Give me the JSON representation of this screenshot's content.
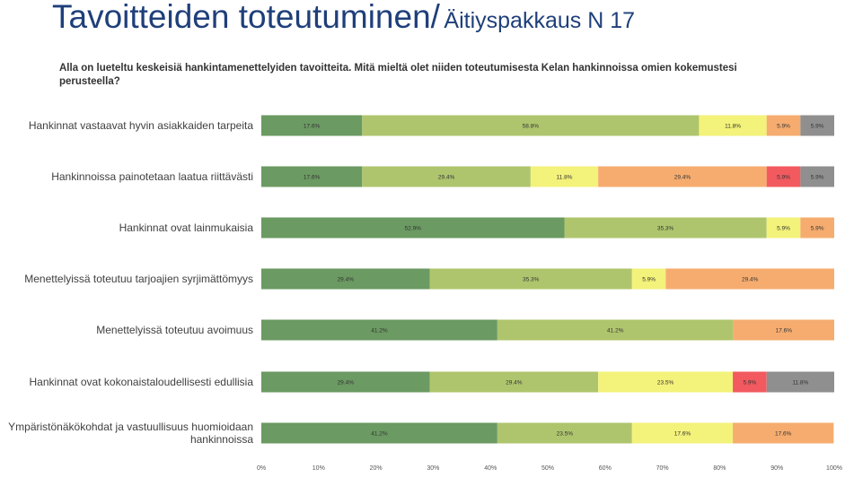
{
  "title": {
    "main": "Tavoitteiden toteutuminen/",
    "sub": "Äitiyspakkaus N 17"
  },
  "question": "Alla on lueteltu keskeisiä hankintamenettelyiden tavoitteita. Mitä mieltä olet niiden toteutumisesta Kelan hankinnoissa omien kokemustesi perusteella?",
  "colors": [
    "#6b9a62",
    "#afc56d",
    "#f3f27a",
    "#f6ac6f",
    "#f25a5f",
    "#8f8f8f"
  ],
  "chart_data": {
    "type": "bar",
    "orientation": "horizontal",
    "stacked": true,
    "categories": [
      [
        "Hankinnat vastaavat hyvin asiakkaiden tarpeita"
      ],
      [
        "Hankinnoissa painotetaan laatua riittävästi"
      ],
      [
        "Hankinnat ovat lainmukaisia"
      ],
      [
        "Menettelyissä toteutuu tarjoajien syrjimättömyys"
      ],
      [
        "Menettelyissä toteutuu avoimuus"
      ],
      [
        "Hankinnat ovat kokonaistaloudellisesti edullisia"
      ],
      [
        "Ympäristönäkökohdat ja vastuullisuus huomioidaan",
        "hankinnoissa"
      ]
    ],
    "series": [
      {
        "values": [
          17.6,
          17.6,
          52.9,
          29.4,
          41.2,
          29.4,
          41.2
        ]
      },
      {
        "values": [
          58.8,
          29.4,
          35.3,
          35.3,
          41.2,
          29.4,
          23.5
        ]
      },
      {
        "values": [
          11.8,
          11.8,
          5.9,
          5.9,
          0,
          23.5,
          17.6
        ]
      },
      {
        "values": [
          5.9,
          29.4,
          5.9,
          29.4,
          17.6,
          0,
          17.6
        ]
      },
      {
        "values": [
          0,
          5.9,
          0,
          0,
          0,
          5.9,
          0
        ]
      },
      {
        "values": [
          5.9,
          5.9,
          0,
          0,
          0,
          11.8,
          0
        ]
      }
    ],
    "data_labels": [
      [
        "17.6%",
        "58.8%",
        "11.8%",
        "5.9%",
        "",
        "5.9%"
      ],
      [
        "17.6%",
        "29.4%",
        "11.8%",
        "29.4%",
        "5.9%",
        "5.9%"
      ],
      [
        "52.9%",
        "35.3%",
        "5.9%",
        "5.9%",
        "",
        ""
      ],
      [
        "29.4%",
        "35.3%",
        "5.9%",
        "29.4%",
        "",
        ""
      ],
      [
        "41.2%",
        "41.2%",
        "",
        "17.6%",
        "",
        ""
      ],
      [
        "29.4%",
        "29.4%",
        "23.5%",
        "",
        "5.9%",
        "11.8%"
      ],
      [
        "41.2%",
        "23.5%",
        "17.6%",
        "17.6%",
        "",
        ""
      ]
    ],
    "xlim": [
      0,
      100
    ],
    "xticks": [
      "0%",
      "10%",
      "20%",
      "30%",
      "40%",
      "50%",
      "60%",
      "70%",
      "80%",
      "90%",
      "100%"
    ],
    "legend": "none",
    "grid": false
  }
}
